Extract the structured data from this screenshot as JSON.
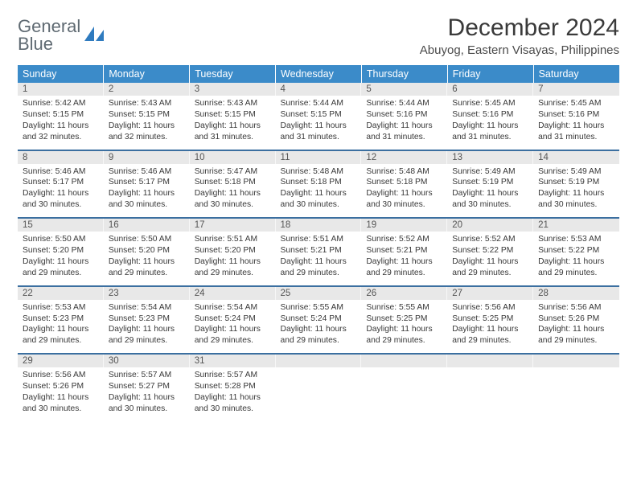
{
  "logo": {
    "line1": "General",
    "line2": "Blue"
  },
  "title": "December 2024",
  "subtitle": "Abuyog, Eastern Visayas, Philippines",
  "colors": {
    "header_bg": "#3b8bc9",
    "header_text": "#ffffff",
    "daynum_bg": "#e8e8e8",
    "row_border": "#3b6fa0",
    "logo_gray": "#5f6a72",
    "logo_blue": "#2f7bbf",
    "title_color": "#3a3a3a"
  },
  "fontsize": {
    "title": 30,
    "subtitle": 15,
    "th": 12.5,
    "daynum": 11.5,
    "body": 10.3
  },
  "weekdays": [
    "Sunday",
    "Monday",
    "Tuesday",
    "Wednesday",
    "Thursday",
    "Friday",
    "Saturday"
  ],
  "weeks": [
    [
      {
        "num": "1",
        "sunrise": "5:42 AM",
        "sunset": "5:15 PM",
        "daylight": "11 hours and 32 minutes."
      },
      {
        "num": "2",
        "sunrise": "5:43 AM",
        "sunset": "5:15 PM",
        "daylight": "11 hours and 32 minutes."
      },
      {
        "num": "3",
        "sunrise": "5:43 AM",
        "sunset": "5:15 PM",
        "daylight": "11 hours and 31 minutes."
      },
      {
        "num": "4",
        "sunrise": "5:44 AM",
        "sunset": "5:15 PM",
        "daylight": "11 hours and 31 minutes."
      },
      {
        "num": "5",
        "sunrise": "5:44 AM",
        "sunset": "5:16 PM",
        "daylight": "11 hours and 31 minutes."
      },
      {
        "num": "6",
        "sunrise": "5:45 AM",
        "sunset": "5:16 PM",
        "daylight": "11 hours and 31 minutes."
      },
      {
        "num": "7",
        "sunrise": "5:45 AM",
        "sunset": "5:16 PM",
        "daylight": "11 hours and 31 minutes."
      }
    ],
    [
      {
        "num": "8",
        "sunrise": "5:46 AM",
        "sunset": "5:17 PM",
        "daylight": "11 hours and 30 minutes."
      },
      {
        "num": "9",
        "sunrise": "5:46 AM",
        "sunset": "5:17 PM",
        "daylight": "11 hours and 30 minutes."
      },
      {
        "num": "10",
        "sunrise": "5:47 AM",
        "sunset": "5:18 PM",
        "daylight": "11 hours and 30 minutes."
      },
      {
        "num": "11",
        "sunrise": "5:48 AM",
        "sunset": "5:18 PM",
        "daylight": "11 hours and 30 minutes."
      },
      {
        "num": "12",
        "sunrise": "5:48 AM",
        "sunset": "5:18 PM",
        "daylight": "11 hours and 30 minutes."
      },
      {
        "num": "13",
        "sunrise": "5:49 AM",
        "sunset": "5:19 PM",
        "daylight": "11 hours and 30 minutes."
      },
      {
        "num": "14",
        "sunrise": "5:49 AM",
        "sunset": "5:19 PM",
        "daylight": "11 hours and 30 minutes."
      }
    ],
    [
      {
        "num": "15",
        "sunrise": "5:50 AM",
        "sunset": "5:20 PM",
        "daylight": "11 hours and 29 minutes."
      },
      {
        "num": "16",
        "sunrise": "5:50 AM",
        "sunset": "5:20 PM",
        "daylight": "11 hours and 29 minutes."
      },
      {
        "num": "17",
        "sunrise": "5:51 AM",
        "sunset": "5:20 PM",
        "daylight": "11 hours and 29 minutes."
      },
      {
        "num": "18",
        "sunrise": "5:51 AM",
        "sunset": "5:21 PM",
        "daylight": "11 hours and 29 minutes."
      },
      {
        "num": "19",
        "sunrise": "5:52 AM",
        "sunset": "5:21 PM",
        "daylight": "11 hours and 29 minutes."
      },
      {
        "num": "20",
        "sunrise": "5:52 AM",
        "sunset": "5:22 PM",
        "daylight": "11 hours and 29 minutes."
      },
      {
        "num": "21",
        "sunrise": "5:53 AM",
        "sunset": "5:22 PM",
        "daylight": "11 hours and 29 minutes."
      }
    ],
    [
      {
        "num": "22",
        "sunrise": "5:53 AM",
        "sunset": "5:23 PM",
        "daylight": "11 hours and 29 minutes."
      },
      {
        "num": "23",
        "sunrise": "5:54 AM",
        "sunset": "5:23 PM",
        "daylight": "11 hours and 29 minutes."
      },
      {
        "num": "24",
        "sunrise": "5:54 AM",
        "sunset": "5:24 PM",
        "daylight": "11 hours and 29 minutes."
      },
      {
        "num": "25",
        "sunrise": "5:55 AM",
        "sunset": "5:24 PM",
        "daylight": "11 hours and 29 minutes."
      },
      {
        "num": "26",
        "sunrise": "5:55 AM",
        "sunset": "5:25 PM",
        "daylight": "11 hours and 29 minutes."
      },
      {
        "num": "27",
        "sunrise": "5:56 AM",
        "sunset": "5:25 PM",
        "daylight": "11 hours and 29 minutes."
      },
      {
        "num": "28",
        "sunrise": "5:56 AM",
        "sunset": "5:26 PM",
        "daylight": "11 hours and 29 minutes."
      }
    ],
    [
      {
        "num": "29",
        "sunrise": "5:56 AM",
        "sunset": "5:26 PM",
        "daylight": "11 hours and 30 minutes."
      },
      {
        "num": "30",
        "sunrise": "5:57 AM",
        "sunset": "5:27 PM",
        "daylight": "11 hours and 30 minutes."
      },
      {
        "num": "31",
        "sunrise": "5:57 AM",
        "sunset": "5:28 PM",
        "daylight": "11 hours and 30 minutes."
      },
      null,
      null,
      null,
      null
    ]
  ],
  "labels": {
    "sunrise": "Sunrise: ",
    "sunset": "Sunset: ",
    "daylight": "Daylight: "
  }
}
